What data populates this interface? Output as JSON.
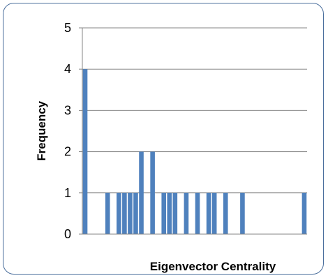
{
  "chart_data": {
    "type": "bar",
    "title": "",
    "xlabel": "Eigenvector Centrality",
    "ylabel": "Frequency",
    "ylim": [
      0,
      5
    ],
    "yticks": [
      "0",
      "1",
      "2",
      "3",
      "4",
      "5"
    ],
    "grid": true,
    "legend": "none",
    "bins": 40,
    "values": [
      4,
      0,
      0,
      0,
      1,
      0,
      1,
      1,
      1,
      1,
      2,
      0,
      2,
      0,
      1,
      1,
      1,
      0,
      1,
      0,
      1,
      0,
      1,
      1,
      0,
      1,
      0,
      0,
      1,
      0,
      0,
      0,
      0,
      0,
      0,
      0,
      0,
      0,
      0,
      1
    ],
    "colors": {
      "bar": "#4f81bd",
      "grid": "#868686",
      "axis": "#868686",
      "frame": "#4a6e9c"
    }
  }
}
